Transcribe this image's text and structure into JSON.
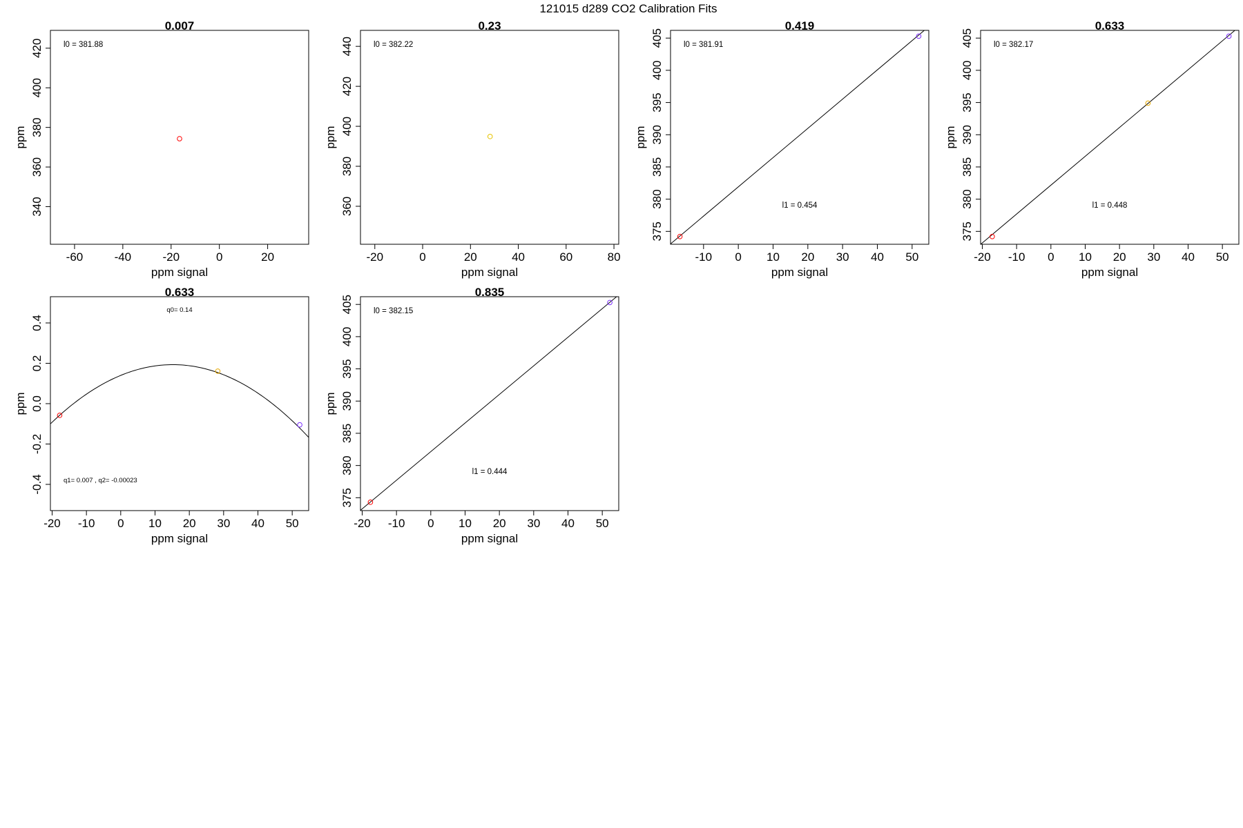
{
  "figure": {
    "title": "121015   d289   CO2 Calibration Fits"
  },
  "chart_data": [
    {
      "type": "scatter",
      "title": "0.007",
      "xlabel": "ppm signal",
      "ylabel": "ppm",
      "xlim": [
        -70,
        37
      ],
      "ylim": [
        321,
        429
      ],
      "xticks": [
        -60,
        -40,
        -20,
        0,
        20
      ],
      "yticks": [
        340,
        360,
        380,
        400,
        420
      ],
      "points": [
        {
          "x": -16.5,
          "y": 374.3,
          "color": "#ff0000"
        }
      ],
      "annotations": [
        {
          "text": "l0 =  381.88",
          "pos": "top-left"
        }
      ]
    },
    {
      "type": "scatter",
      "title": "0.23",
      "xlabel": "ppm signal",
      "ylabel": "ppm",
      "xlim": [
        -26,
        82
      ],
      "ylim": [
        341,
        448
      ],
      "xticks": [
        -20,
        0,
        20,
        40,
        60,
        80
      ],
      "yticks": [
        360,
        380,
        400,
        420,
        440
      ],
      "points": [
        {
          "x": 28.2,
          "y": 394.9,
          "color": "#e6c300"
        }
      ],
      "annotations": [
        {
          "text": "l0 =  382.22",
          "pos": "top-left"
        }
      ]
    },
    {
      "type": "scatter",
      "title": "0.419",
      "xlabel": "ppm signal",
      "ylabel": "ppm",
      "xlim": [
        -19.5,
        54.8
      ],
      "ylim": [
        373,
        406.2
      ],
      "xticks": [
        -10,
        0,
        10,
        20,
        30,
        40,
        50
      ],
      "yticks": [
        375,
        380,
        385,
        390,
        395,
        400,
        405
      ],
      "points": [
        {
          "x": -16.8,
          "y": 374.2,
          "color": "#ff0000"
        },
        {
          "x": 51.9,
          "y": 405.3,
          "color": "#7a2cff"
        }
      ],
      "fit_line": {
        "intercept": 381.91,
        "slope": 0.454
      },
      "annotations": [
        {
          "text": "l0 =  381.91",
          "pos": "top-left"
        },
        {
          "text": "l1 =  0.454",
          "pos": "lower-middle"
        }
      ]
    },
    {
      "type": "scatter",
      "title": "0.633",
      "xlabel": "ppm signal",
      "ylabel": "ppm",
      "xlim": [
        -20.5,
        54.8
      ],
      "ylim": [
        373,
        406.2
      ],
      "xticks": [
        -20,
        -10,
        0,
        10,
        20,
        30,
        40,
        50
      ],
      "yticks": [
        375,
        380,
        385,
        390,
        395,
        400,
        405
      ],
      "points": [
        {
          "x": -17.1,
          "y": 374.2,
          "color": "#ff0000"
        },
        {
          "x": 28.3,
          "y": 394.9,
          "color": "#e6a800"
        },
        {
          "x": 51.9,
          "y": 405.3,
          "color": "#7a2cff"
        }
      ],
      "fit_line": {
        "intercept": 382.17,
        "slope": 0.448
      },
      "annotations": [
        {
          "text": "l0 =  382.17",
          "pos": "top-left"
        },
        {
          "text": "l1 =  0.448",
          "pos": "lower-middle"
        }
      ]
    },
    {
      "type": "scatter",
      "title": "0.633",
      "xlabel": "ppm signal",
      "ylabel": "ppm",
      "xlim": [
        -20.5,
        54.8
      ],
      "ylim": [
        -0.53,
        0.53
      ],
      "xticks": [
        -20,
        -10,
        0,
        10,
        20,
        30,
        40,
        50
      ],
      "yticks": [
        -0.4,
        -0.2,
        0.0,
        0.2,
        0.4
      ],
      "ytick_labels": [
        "-0.4",
        "-0.2",
        "0.0",
        "0.2",
        "0.4"
      ],
      "points": [
        {
          "x": -17.8,
          "y": -0.058,
          "color": "#ff0000"
        },
        {
          "x": 28.3,
          "y": 0.161,
          "color": "#e6a800"
        },
        {
          "x": 52.2,
          "y": -0.105,
          "color": "#7a2cff"
        }
      ],
      "fit_curve": {
        "q0": 0.14,
        "q1": 0.007,
        "q2": -0.00023
      },
      "annotations": [
        {
          "text": "q0= 0.14",
          "pos": "top-center",
          "small": true
        },
        {
          "text": "q1= 0.007 , q2= -0.00023",
          "pos": "bottom-left",
          "small": true
        }
      ]
    },
    {
      "type": "scatter",
      "title": "0.835",
      "xlabel": "ppm signal",
      "ylabel": "ppm",
      "xlim": [
        -20.5,
        54.8
      ],
      "ylim": [
        373,
        406.2
      ],
      "xticks": [
        -20,
        -10,
        0,
        10,
        20,
        30,
        40,
        50
      ],
      "yticks": [
        375,
        380,
        385,
        390,
        395,
        400,
        405
      ],
      "points": [
        {
          "x": -17.6,
          "y": 374.3,
          "color": "#ff0000"
        },
        {
          "x": 52.2,
          "y": 405.3,
          "color": "#7a2cff"
        }
      ],
      "fit_line": {
        "intercept": 382.15,
        "slope": 0.444
      },
      "annotations": [
        {
          "text": "l0 =  382.15",
          "pos": "top-left"
        },
        {
          "text": "l1 =  0.444",
          "pos": "lower-middle"
        }
      ]
    }
  ]
}
